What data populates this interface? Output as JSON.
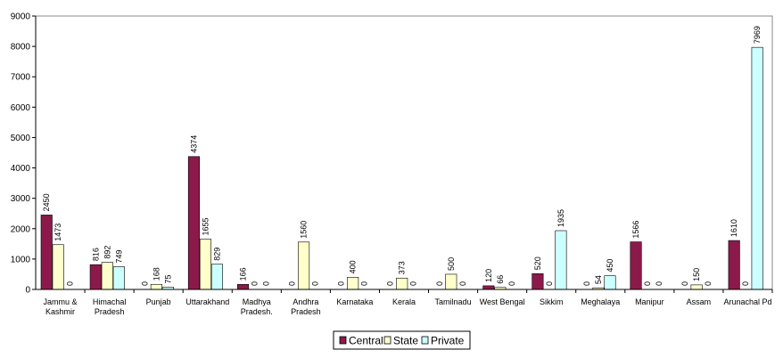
{
  "chart_data": {
    "type": "bar",
    "categories": [
      [
        "Jammu &",
        "Kashmir"
      ],
      [
        "Himachal",
        "Pradesh"
      ],
      [
        "Punjab"
      ],
      [
        "Uttarakhand"
      ],
      [
        "Madhya",
        "Pradesh."
      ],
      [
        "Andhra",
        "Pradesh"
      ],
      [
        "Karnataka"
      ],
      [
        "Kerala"
      ],
      [
        "Tamilnadu"
      ],
      [
        "West Bengal"
      ],
      [
        "Sikkim"
      ],
      [
        "Meghalaya"
      ],
      [
        "Manipur"
      ],
      [
        "Assam"
      ],
      [
        "Arunachal Pd"
      ]
    ],
    "series": [
      {
        "name": "Central",
        "color": "#8B1A4A",
        "values": [
          2450,
          816,
          0,
          4374,
          166,
          0,
          0,
          0,
          0,
          120,
          520,
          0,
          1566,
          0,
          1610
        ]
      },
      {
        "name": "State",
        "color": "#FFFFCC",
        "values": [
          1473,
          892,
          168,
          1655,
          0,
          1560,
          400,
          373,
          500,
          66,
          0,
          54,
          0,
          150,
          0
        ]
      },
      {
        "name": "Private",
        "color": "#CCFFFF",
        "values": [
          0,
          749,
          75,
          829,
          0,
          0,
          0,
          0,
          0,
          0,
          1935,
          450,
          0,
          0,
          7969
        ]
      }
    ],
    "yticks": [
      "0",
      "1000",
      "2000",
      "3000",
      "4000",
      "5000",
      "6000",
      "7000",
      "8000",
      "9000"
    ],
    "ylim": [
      0,
      9000
    ],
    "legend_position": "bottom"
  }
}
